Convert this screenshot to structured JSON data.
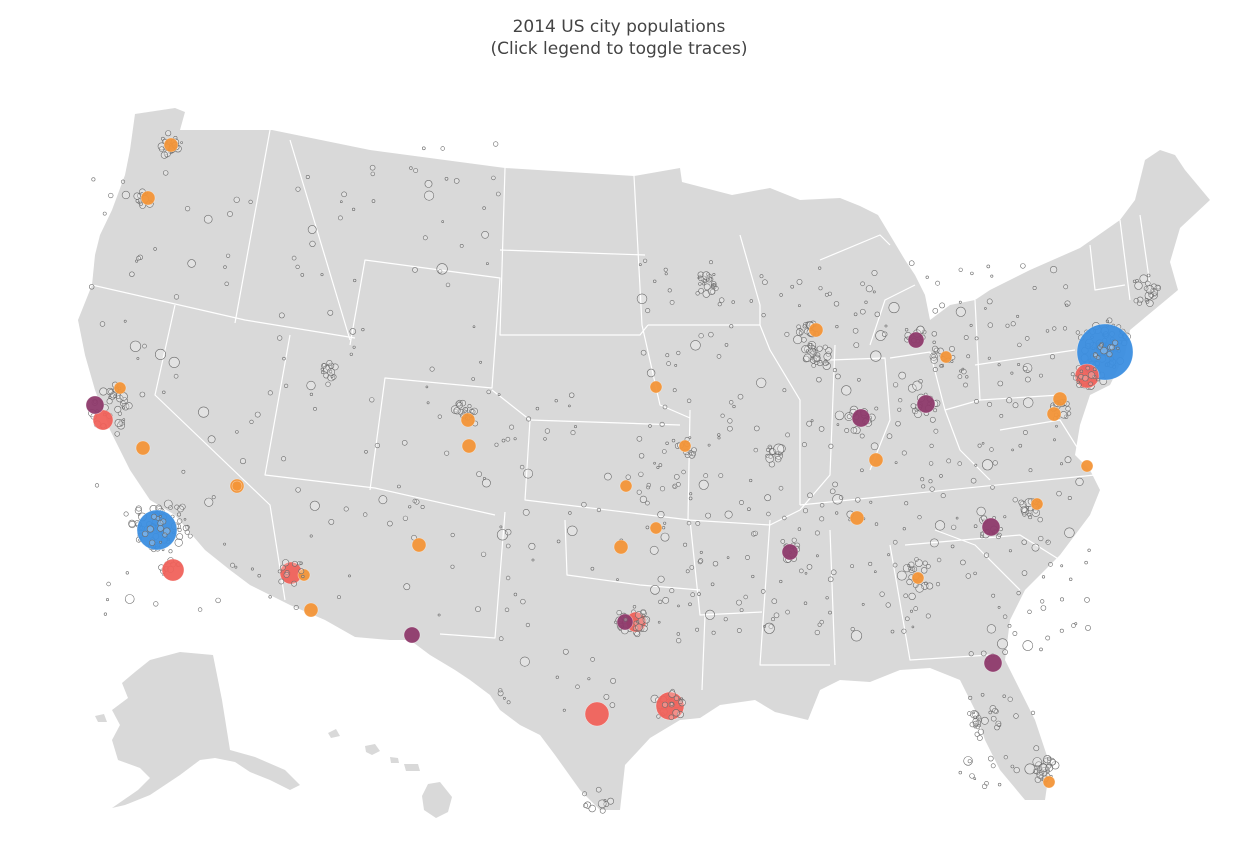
{
  "title": {
    "line1": "2014 US city populations",
    "line2": "(Click legend to toggle traces)"
  },
  "colors": {
    "land": "#d9d9d9",
    "state_border": "#ffffff",
    "tier_1": "#3b8ee0",
    "tier_2": "#f0625b",
    "tier_3": "#8e3a6b",
    "tier_4": "#f39538",
    "small_outline": "#6b6b6b"
  }
}
